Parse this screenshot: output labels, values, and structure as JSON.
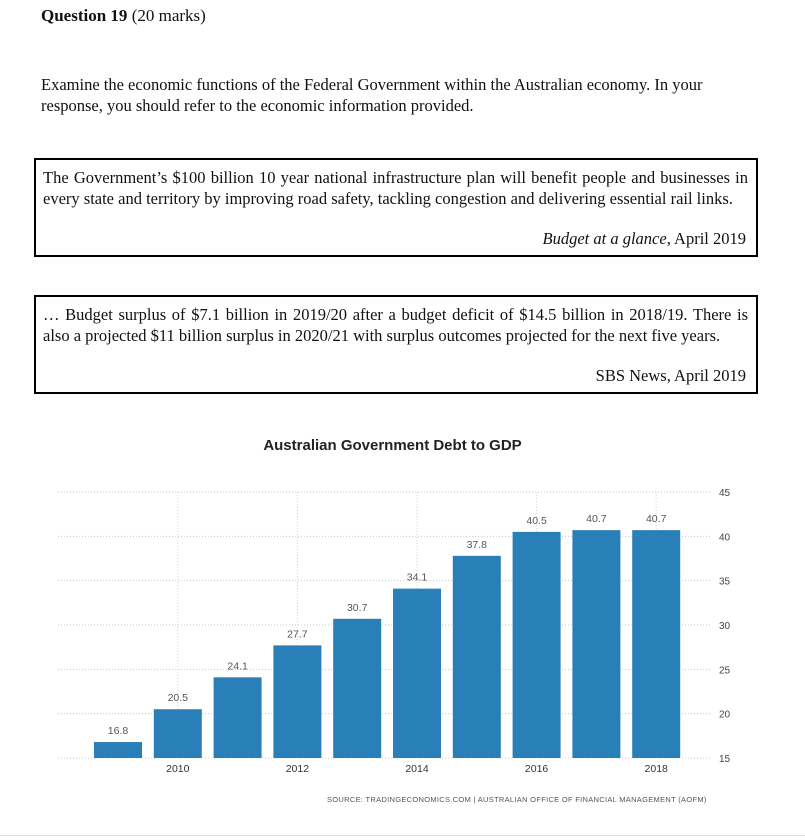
{
  "question": {
    "number": "Question 19",
    "marks": "(20 marks)",
    "prompt": "Examine the economic functions of the Federal Government within the Australian economy. In your response, you should refer to the economic information provided."
  },
  "sources": [
    {
      "text": "The Government’s $100 billion 10 year national infrastructure plan will benefit people and businesses in every state and territory by improving road safety, tackling congestion and delivering essential rail links.",
      "attribution_title": "Budget at a glance",
      "attribution_date": ", April 2019"
    },
    {
      "text": "… Budget surplus of $7.1 billion in 2019/20 after a budget deficit of $14.5 billion in 2018/19. There is also a projected $11 billion surplus in 2020/21 with surplus outcomes projected for the next five years.",
      "attribution": "SBS News, April 2019"
    }
  ],
  "chart_data": {
    "type": "bar",
    "title": "Australian Government Debt to GDP",
    "x": [
      2009,
      2010,
      2011,
      2012,
      2013,
      2014,
      2015,
      2016,
      2017,
      2018
    ],
    "values": [
      16.8,
      20.5,
      24.1,
      27.7,
      30.7,
      34.1,
      37.8,
      40.5,
      40.7,
      40.7
    ],
    "data_labels": [
      "16.8",
      "20.5",
      "24.1",
      "27.7",
      "30.7",
      "34.1",
      "37.8",
      "40.5",
      "40.7",
      "40.7"
    ],
    "x_tick_labels": [
      "2010",
      "2012",
      "2014",
      "2016",
      "2018"
    ],
    "y_tick_labels": [
      "15",
      "20",
      "25",
      "30",
      "35",
      "40",
      "45"
    ],
    "ylim": [
      15,
      45
    ],
    "y_axis_side": "right",
    "grid": true,
    "bar_color": "#2980b9",
    "source": "SOURCE: TRADINGECONOMICS.COM | AUSTRALIAN OFFICE OF FINANCIAL MANAGEMENT (AOFM)"
  }
}
